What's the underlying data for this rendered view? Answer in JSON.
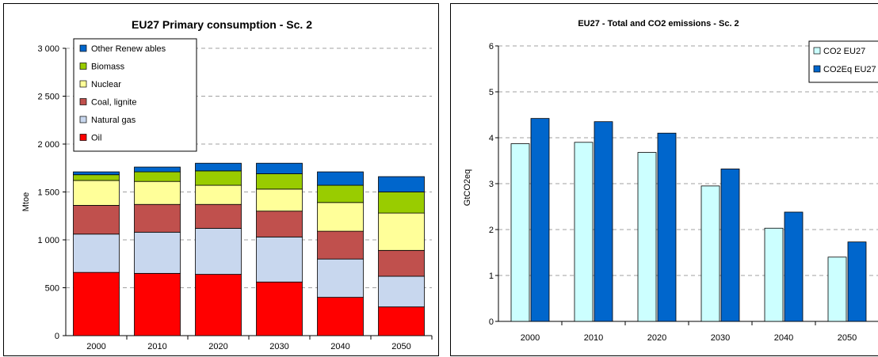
{
  "chart_data": [
    {
      "type": "bar",
      "stacked": true,
      "title": "EU27 Primary consumption - Sc. 2",
      "xlabel": "",
      "ylabel": "Mtoe",
      "ylim": [
        0,
        3000
      ],
      "yticks": [
        "0",
        "500",
        "1 000",
        "1 500",
        "2 000",
        "2 500",
        "3 000"
      ],
      "ytick_values": [
        0,
        500,
        1000,
        1500,
        2000,
        2500,
        3000
      ],
      "grid": true,
      "legend_position": "top-left",
      "categories": [
        "2000",
        "2010",
        "2020",
        "2030",
        "2040",
        "2050"
      ],
      "series": [
        {
          "name": "Oil",
          "color": "#ff0000",
          "values": [
            660,
            650,
            640,
            560,
            400,
            300
          ]
        },
        {
          "name": "Natural gas",
          "color": "#c8d7ee",
          "values": [
            400,
            430,
            480,
            470,
            400,
            320
          ]
        },
        {
          "name": "Coal, lignite",
          "color": "#c0504d",
          "values": [
            300,
            290,
            250,
            270,
            290,
            270
          ]
        },
        {
          "name": "Nuclear",
          "color": "#ffff99",
          "values": [
            260,
            240,
            200,
            230,
            300,
            390
          ]
        },
        {
          "name": "Biomass",
          "color": "#99cc00",
          "values": [
            60,
            100,
            150,
            160,
            180,
            220
          ]
        },
        {
          "name": "Other Renew ables",
          "color": "#0066cc",
          "values": [
            30,
            50,
            80,
            110,
            140,
            160
          ]
        }
      ]
    },
    {
      "type": "bar",
      "title": "EU27 - Total and CO2 emissions - Sc. 2",
      "xlabel": "",
      "ylabel": "GtCO2eq",
      "ylim": [
        0,
        6
      ],
      "yticks": [
        "0",
        "1",
        "2",
        "3",
        "4",
        "5",
        "6"
      ],
      "ytick_values": [
        0,
        1,
        2,
        3,
        4,
        5,
        6
      ],
      "grid": true,
      "legend_position": "top-right",
      "categories": [
        "2000",
        "2010",
        "2020",
        "2030",
        "2040",
        "2050"
      ],
      "series": [
        {
          "name": "CO2 EU27",
          "color": "#ccffff",
          "values": [
            3.87,
            3.9,
            3.68,
            2.95,
            2.03,
            1.4
          ]
        },
        {
          "name": "CO2Eq EU27",
          "color": "#0066cc",
          "values": [
            4.42,
            4.35,
            4.1,
            3.32,
            2.38,
            1.73
          ]
        }
      ]
    }
  ]
}
